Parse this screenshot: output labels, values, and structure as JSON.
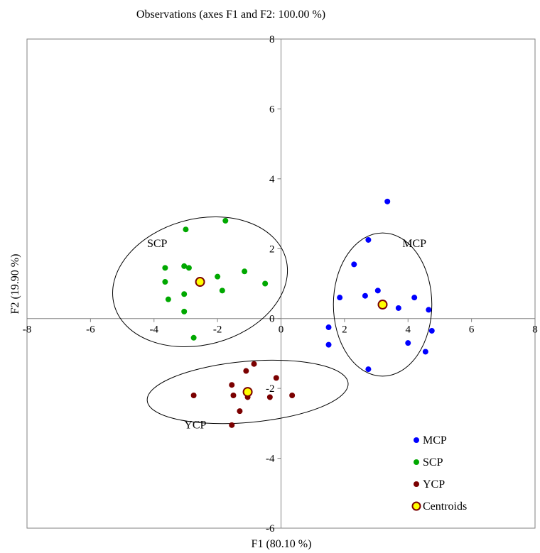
{
  "chart_data": {
    "type": "scatter",
    "title": "Observations (axes F1 and F2: 100.00 %)",
    "xlabel": "F1 (80.10 %)",
    "ylabel": "F2 (19.90 %)",
    "xlim": [
      -8,
      8
    ],
    "ylim": [
      -6,
      8
    ],
    "x_ticks": [
      "-8",
      "-6",
      "-4",
      "-2",
      "0",
      "2",
      "4",
      "6",
      "8"
    ],
    "y_ticks": [
      "-6",
      "-4",
      "-2",
      "0",
      "2",
      "4",
      "6",
      "8"
    ],
    "grid": false,
    "legend_position": "bottom-right",
    "series": [
      {
        "name": "MCP",
        "color": "#0000ff",
        "points": [
          [
            3.35,
            3.35
          ],
          [
            2.75,
            2.25
          ],
          [
            2.3,
            1.55
          ],
          [
            3.05,
            0.8
          ],
          [
            2.65,
            0.65
          ],
          [
            1.85,
            0.6
          ],
          [
            4.2,
            0.6
          ],
          [
            3.7,
            0.3
          ],
          [
            4.65,
            0.25
          ],
          [
            4.75,
            -0.35
          ],
          [
            1.5,
            -0.25
          ],
          [
            1.5,
            -0.75
          ],
          [
            4.0,
            -0.7
          ],
          [
            4.55,
            -0.95
          ],
          [
            2.75,
            -1.45
          ]
        ]
      },
      {
        "name": "SCP",
        "color": "#00a800",
        "points": [
          [
            -1.75,
            2.8
          ],
          [
            -3.0,
            2.55
          ],
          [
            -3.65,
            1.45
          ],
          [
            -3.05,
            1.5
          ],
          [
            -2.9,
            1.45
          ],
          [
            -1.15,
            1.35
          ],
          [
            -2.0,
            1.2
          ],
          [
            -3.65,
            1.05
          ],
          [
            -0.5,
            1.0
          ],
          [
            -1.85,
            0.8
          ],
          [
            -3.05,
            0.7
          ],
          [
            -3.55,
            0.55
          ],
          [
            -3.05,
            0.2
          ],
          [
            -2.75,
            -0.55
          ]
        ]
      },
      {
        "name": "YCP",
        "color": "#7b0000",
        "points": [
          [
            -0.85,
            -1.3
          ],
          [
            -1.1,
            -1.5
          ],
          [
            -0.15,
            -1.7
          ],
          [
            -1.55,
            -1.9
          ],
          [
            -2.75,
            -2.2
          ],
          [
            -1.5,
            -2.2
          ],
          [
            0.35,
            -2.2
          ],
          [
            -1.05,
            -2.25
          ],
          [
            -0.35,
            -2.25
          ],
          [
            -1.3,
            -2.65
          ],
          [
            -1.55,
            -3.05
          ]
        ]
      },
      {
        "name": "Centroids",
        "color": "#ffff00",
        "edge_color": "#7b0000",
        "points": [
          [
            -2.55,
            1.05
          ],
          [
            3.2,
            0.4
          ],
          [
            -1.05,
            -2.1
          ]
        ]
      }
    ],
    "ellipses": [
      {
        "label": "SCP",
        "cx": -2.55,
        "cy": 1.05,
        "rx": 5.6,
        "ry": 3.6,
        "rotation_deg": -15,
        "label_at": [
          -3.9,
          2.05
        ]
      },
      {
        "label": "MCP",
        "cx": 3.2,
        "cy": 0.4,
        "rx": 3.1,
        "ry": 4.1,
        "rotation_deg": 0,
        "label_at": [
          4.2,
          2.05
        ]
      },
      {
        "label": "YCP",
        "cx": -1.05,
        "cy": -2.1,
        "rx": 6.35,
        "ry": 1.75,
        "rotation_deg": -5,
        "label_at": [
          -2.7,
          -3.15
        ]
      }
    ]
  }
}
